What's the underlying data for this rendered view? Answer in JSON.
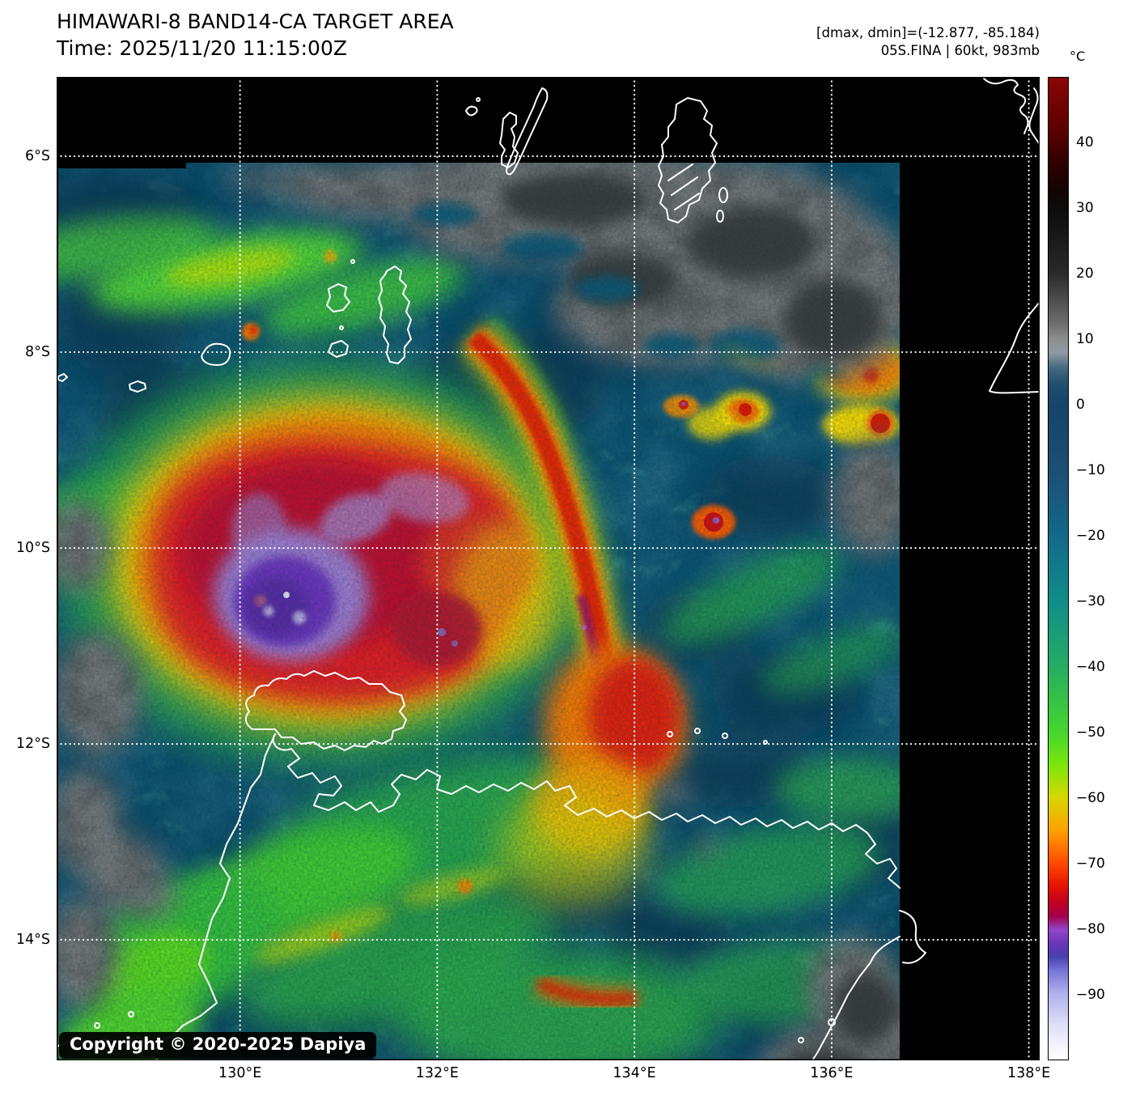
{
  "chart_data": {
    "type": "heatmap",
    "title": "HIMAWARI-8 BAND14-CA TARGET AREA",
    "time_line": "Time: 2025/11/20 11:15:00Z",
    "satellite": "HIMAWARI-8",
    "band": "BAND14-CA",
    "product": "TARGET AREA",
    "annotations": {
      "dmax_dmin": "[dmax, dmin]=(-12.877, -85.184)",
      "storm_line": "05S.FINA | 60kt, 983mb"
    },
    "storm": {
      "id": "05S.FINA",
      "name": "FINA",
      "intensity_kt": 60,
      "pressure_mb": 983,
      "dmax_c": -12.877,
      "dmin_c": -85.184
    },
    "x_axis": {
      "unit": "°E",
      "range": [
        128.14,
        138.11
      ],
      "ticks": [
        {
          "value": 130,
          "label": "130°E"
        },
        {
          "value": 132,
          "label": "132°E"
        },
        {
          "value": 134,
          "label": "134°E"
        },
        {
          "value": 136,
          "label": "136°E"
        },
        {
          "value": 138,
          "label": "138°E"
        }
      ]
    },
    "y_axis": {
      "unit": "°S",
      "range": [
        5.19,
        15.23
      ],
      "ticks": [
        {
          "value": 6,
          "label": "6°S"
        },
        {
          "value": 8,
          "label": "8°S"
        },
        {
          "value": 10,
          "label": "10°S"
        },
        {
          "value": 12,
          "label": "12°S"
        },
        {
          "value": 14,
          "label": "14°S"
        }
      ]
    },
    "colorbar": {
      "unit": "°C",
      "domain": [
        50,
        -100
      ],
      "ticks": [
        {
          "value": 40,
          "label": "40"
        },
        {
          "value": 30,
          "label": "30"
        },
        {
          "value": 20,
          "label": "20"
        },
        {
          "value": 10,
          "label": "10"
        },
        {
          "value": 0,
          "label": "0"
        },
        {
          "value": -10,
          "label": "−10"
        },
        {
          "value": -20,
          "label": "−20"
        },
        {
          "value": -30,
          "label": "−30"
        },
        {
          "value": -40,
          "label": "−40"
        },
        {
          "value": -50,
          "label": "−50"
        },
        {
          "value": -60,
          "label": "−60"
        },
        {
          "value": -70,
          "label": "−70"
        },
        {
          "value": -80,
          "label": "−80"
        },
        {
          "value": -90,
          "label": "−90"
        }
      ],
      "gradient": [
        {
          "pos": 0.0,
          "color": "#8a0606"
        },
        {
          "pos": 0.05,
          "color": "#600000"
        },
        {
          "pos": 0.085,
          "color": "#320000"
        },
        {
          "pos": 0.115,
          "color": "#120404"
        },
        {
          "pos": 0.135,
          "color": "#0c0c0c"
        },
        {
          "pos": 0.2,
          "color": "#2a2a2a"
        },
        {
          "pos": 0.252,
          "color": "#707070"
        },
        {
          "pos": 0.266,
          "color": "#8d8d8d"
        },
        {
          "pos": 0.28,
          "color": "#8e9aa2"
        },
        {
          "pos": 0.295,
          "color": "#476a82"
        },
        {
          "pos": 0.31,
          "color": "#25506e"
        },
        {
          "pos": 0.333,
          "color": "#15436a"
        },
        {
          "pos": 0.4,
          "color": "#1d4e74"
        },
        {
          "pos": 0.467,
          "color": "#13698a"
        },
        {
          "pos": 0.533,
          "color": "#108d89"
        },
        {
          "pos": 0.6,
          "color": "#25ad63"
        },
        {
          "pos": 0.667,
          "color": "#46d62c"
        },
        {
          "pos": 0.7,
          "color": "#7ce60d"
        },
        {
          "pos": 0.733,
          "color": "#d6d800"
        },
        {
          "pos": 0.767,
          "color": "#ffa000"
        },
        {
          "pos": 0.8,
          "color": "#ff4a00"
        },
        {
          "pos": 0.822,
          "color": "#e51500"
        },
        {
          "pos": 0.84,
          "color": "#c00020"
        },
        {
          "pos": 0.854,
          "color": "#a4004c"
        },
        {
          "pos": 0.868,
          "color": "#9146cc"
        },
        {
          "pos": 0.882,
          "color": "#6a35b8"
        },
        {
          "pos": 0.895,
          "color": "#4a3fae"
        },
        {
          "pos": 0.91,
          "color": "#7878d8"
        },
        {
          "pos": 0.933,
          "color": "#b0b0ee"
        },
        {
          "pos": 0.965,
          "color": "#dfdff8"
        },
        {
          "pos": 1.0,
          "color": "#ffffff"
        }
      ]
    },
    "grid": {
      "color": "#ffffff",
      "style": "dotted"
    },
    "features": {
      "cyclone_center_approx": {
        "lon_e": 130.6,
        "lat_s": 10.5
      },
      "coldest_cloud_top_c": -85.184,
      "warmest_pixel_c": -12.877,
      "description": "Tropical cyclone with cold central dense overcast (purple, below -80°C) near 130.6°E 10.5°S, curved convective band east of the center, warm gray cloud/land region to the north, scattered deep convection elsewhere over dark teal ocean background."
    }
  },
  "footer": {
    "copyright": "Copyright © 2020-2025 Dapiya"
  }
}
